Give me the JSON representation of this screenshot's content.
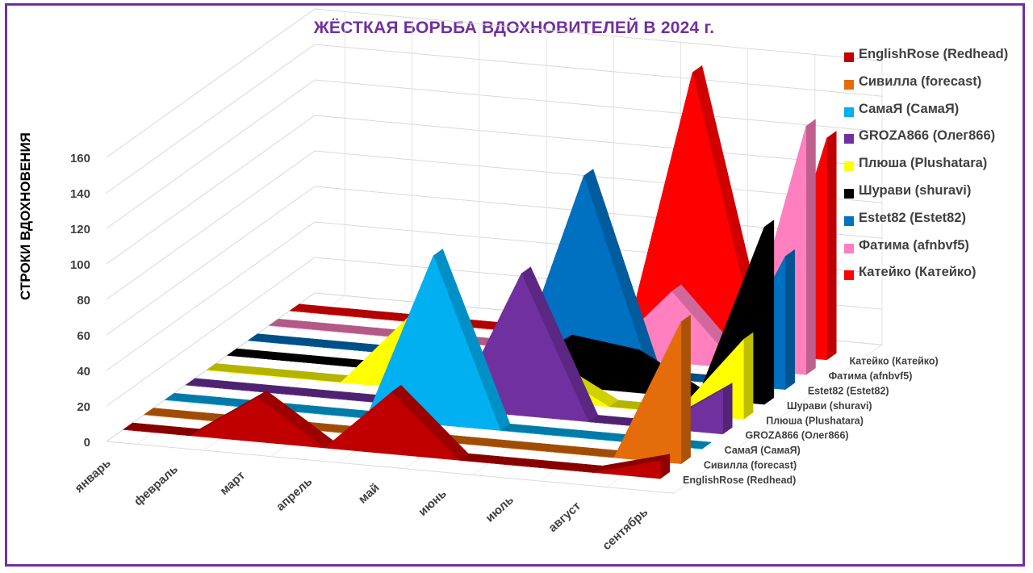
{
  "chart_data": {
    "type": "3d-area",
    "title": "ЖЁСТКАЯ БОРЬБА ВДОХНОВИТЕЛЕЙ В 2024 г.",
    "ylabel": "СТРОКИ ВДОХНОВЕНИЯ",
    "xlabel": "",
    "ylim": [
      0,
      160
    ],
    "y_ticks": [
      "0",
      "20",
      "40",
      "60",
      "80",
      "100",
      "120",
      "140",
      "160"
    ],
    "categories": [
      "январь",
      "февраль",
      "март",
      "апрель",
      "май",
      "июнь",
      "июль",
      "август",
      "сентябрь"
    ],
    "legend_position": "right",
    "grid": true,
    "series": [
      {
        "name": "EnglishRose (Redhead)",
        "color": "#c00000",
        "values": [
          0,
          0,
          25,
          0,
          35,
          0,
          0,
          0,
          10
        ]
      },
      {
        "name": "Сивилла (forecast)",
        "color": "#e46c0a",
        "values": [
          0,
          0,
          0,
          0,
          0,
          0,
          0,
          0,
          80
        ]
      },
      {
        "name": "СамаЯ (СамаЯ)",
        "color": "#00b0f0",
        "values": [
          0,
          0,
          0,
          0,
          95,
          0,
          0,
          0,
          0
        ]
      },
      {
        "name": "GROZA866 (Олег866)",
        "color": "#7030a0",
        "values": [
          0,
          0,
          0,
          0,
          0,
          80,
          0,
          0,
          25
        ]
      },
      {
        "name": "Плюша (Plushatara)",
        "color": "#ffff00",
        "values": [
          0,
          0,
          0,
          40,
          0,
          20,
          0,
          0,
          45
        ]
      },
      {
        "name": "Шурави (shuravi)",
        "color": "#000000",
        "values": [
          0,
          0,
          0,
          0,
          0,
          25,
          20,
          0,
          100
        ]
      },
      {
        "name": "Estet82 (Estet82)",
        "color": "#0070c0",
        "values": [
          0,
          0,
          0,
          0,
          0,
          110,
          0,
          0,
          75
        ]
      },
      {
        "name": "Фатима (afnbvf5)",
        "color": "#ff7fbf",
        "values": [
          0,
          0,
          0,
          0,
          0,
          0,
          40,
          0,
          140
        ]
      },
      {
        "name": "Катейко (Катейко)",
        "color": "#ff0000",
        "values": [
          0,
          0,
          0,
          0,
          0,
          0,
          155,
          0,
          125
        ]
      }
    ]
  }
}
